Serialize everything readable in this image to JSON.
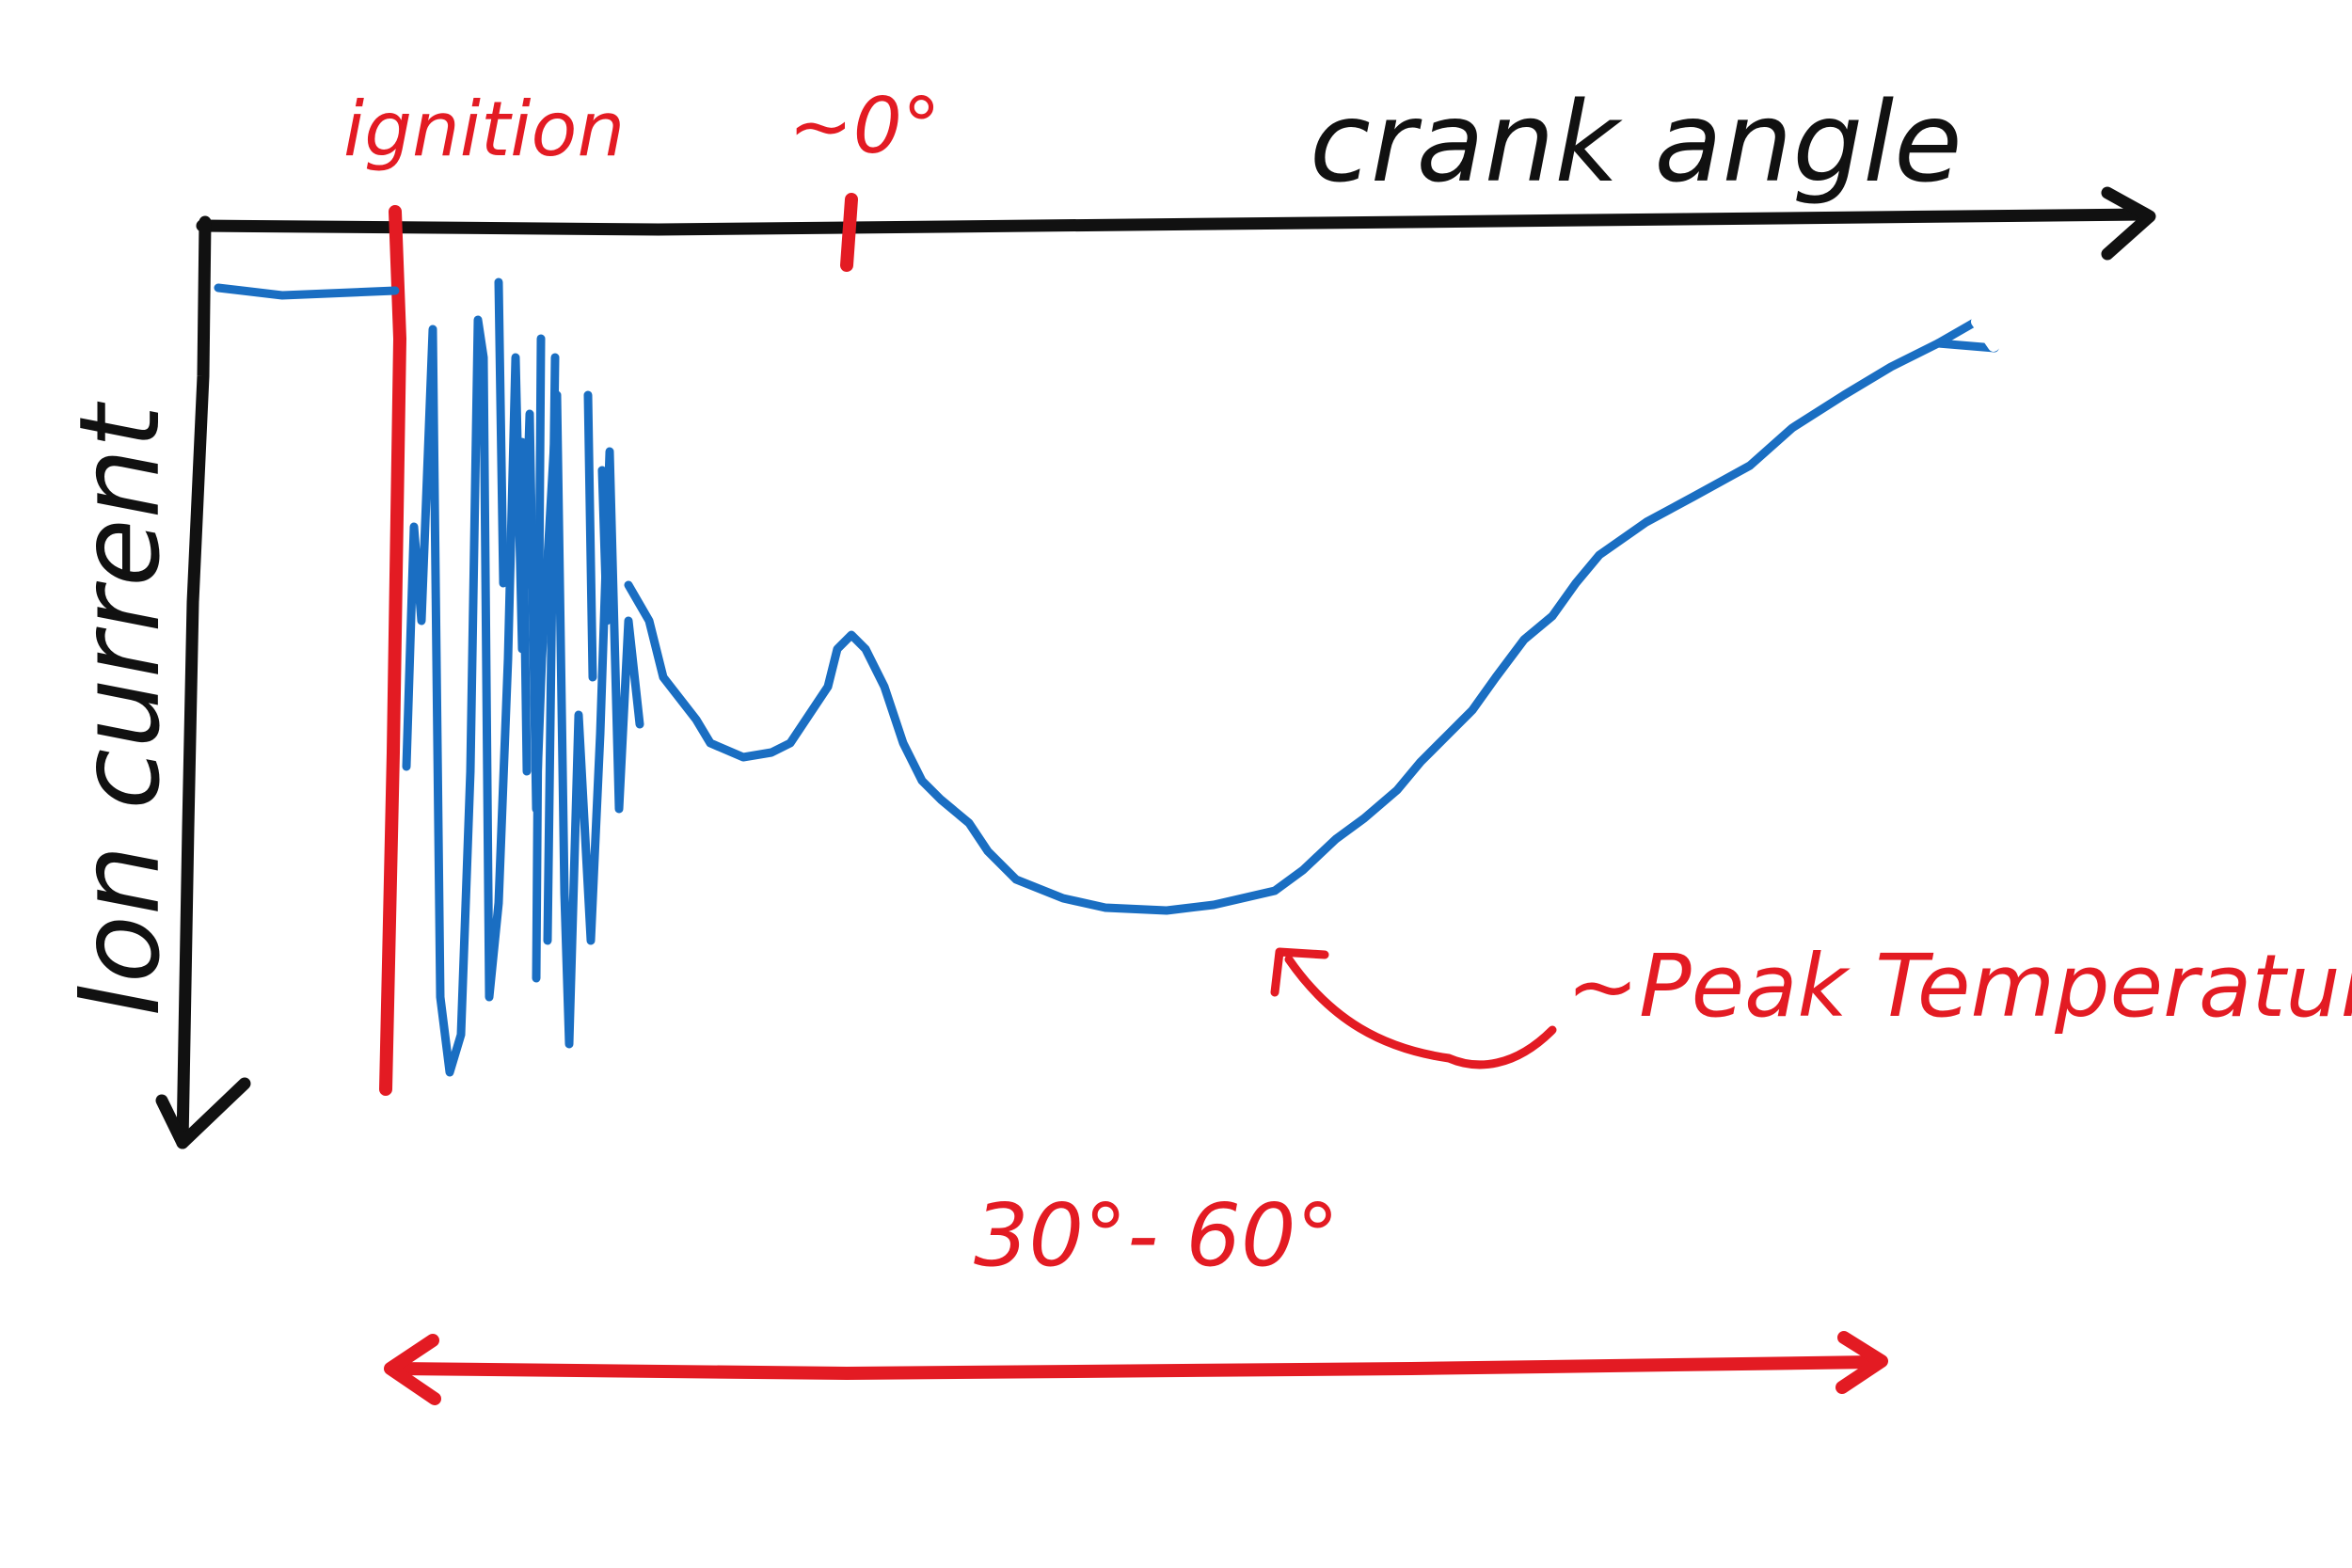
{
  "diagram": {
    "x_axis_label": "crank angle",
    "y_axis_label": "Ion current",
    "ignition_label": "ignition",
    "tdc_label": "~0°",
    "peak_label": "~Peak Temperature",
    "range_label": "30°- 60°"
  },
  "colors": {
    "axis": "#111111",
    "annotation": "#e31b23",
    "signal": "#1a6ec2",
    "background": "#ffffff"
  }
}
